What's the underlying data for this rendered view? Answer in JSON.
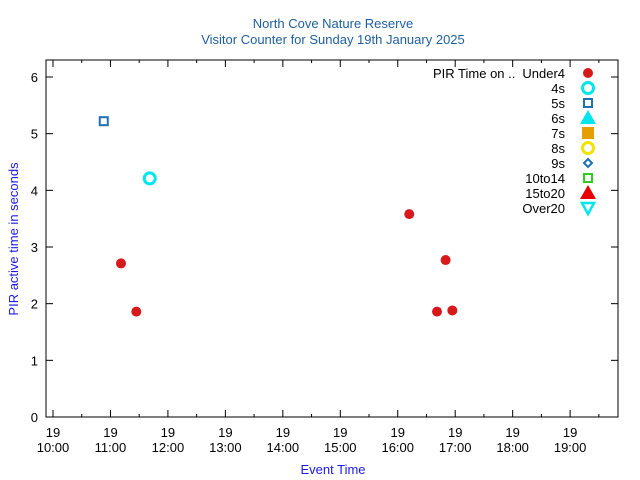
{
  "chart_data": {
    "type": "scatter",
    "title": "North Cove Nature Reserve",
    "subtitle": "Visitor Counter for Sunday 19th January 2025",
    "xlabel": "Event Time",
    "ylabel": "PIR active time in seconds",
    "xlim": [
      "10:00",
      "19:50"
    ],
    "ylim": [
      0,
      6.3
    ],
    "yticks": [
      0,
      1,
      2,
      3,
      4,
      5,
      6
    ],
    "xticks": [
      {
        "day": "19",
        "time": "10:00"
      },
      {
        "day": "19",
        "time": "11:00"
      },
      {
        "day": "19",
        "time": "12:00"
      },
      {
        "day": "19",
        "time": "13:00"
      },
      {
        "day": "19",
        "time": "14:00"
      },
      {
        "day": "19",
        "time": "15:00"
      },
      {
        "day": "19",
        "time": "16:00"
      },
      {
        "day": "19",
        "time": "17:00"
      },
      {
        "day": "19",
        "time": "18:00"
      },
      {
        "day": "19",
        "time": "19:00"
      }
    ],
    "grid": false,
    "legend_position": "top-right",
    "legend_title": "PIR Time on ..",
    "series": [
      {
        "name": "Under4",
        "marker": "filled-circle",
        "color": "#d7191c",
        "points": [
          {
            "x": "11:11",
            "y": 2.71
          },
          {
            "x": "11:27",
            "y": 1.86
          },
          {
            "x": "16:12",
            "y": 3.58
          },
          {
            "x": "16:41",
            "y": 1.86
          },
          {
            "x": "16:50",
            "y": 2.77
          },
          {
            "x": "16:57",
            "y": 1.88
          }
        ]
      },
      {
        "name": "4s",
        "marker": "open-circle",
        "color": "#00e5ee",
        "points": [
          {
            "x": "11:41",
            "y": 4.21
          }
        ]
      },
      {
        "name": "5s",
        "marker": "open-square",
        "color": "#1f6fb4",
        "points": [
          {
            "x": "10:53",
            "y": 5.22
          }
        ]
      },
      {
        "name": "6s",
        "marker": "filled-triangle-up",
        "color": "#00e5ee",
        "points": []
      },
      {
        "name": "7s",
        "marker": "filled-square",
        "color": "#e69f00",
        "points": []
      },
      {
        "name": "8s",
        "marker": "open-circle",
        "color": "#f0e400",
        "points": []
      },
      {
        "name": "9s",
        "marker": "open-diamond",
        "color": "#1f6fb4",
        "points": []
      },
      {
        "name": "10to14",
        "marker": "open-square",
        "color": "#2ecc1f",
        "points": []
      },
      {
        "name": "15to20",
        "marker": "filled-triangle-up",
        "color": "#e60000",
        "points": []
      },
      {
        "name": "Over20",
        "marker": "open-triangle-down",
        "color": "#00e5ee",
        "points": []
      }
    ]
  }
}
